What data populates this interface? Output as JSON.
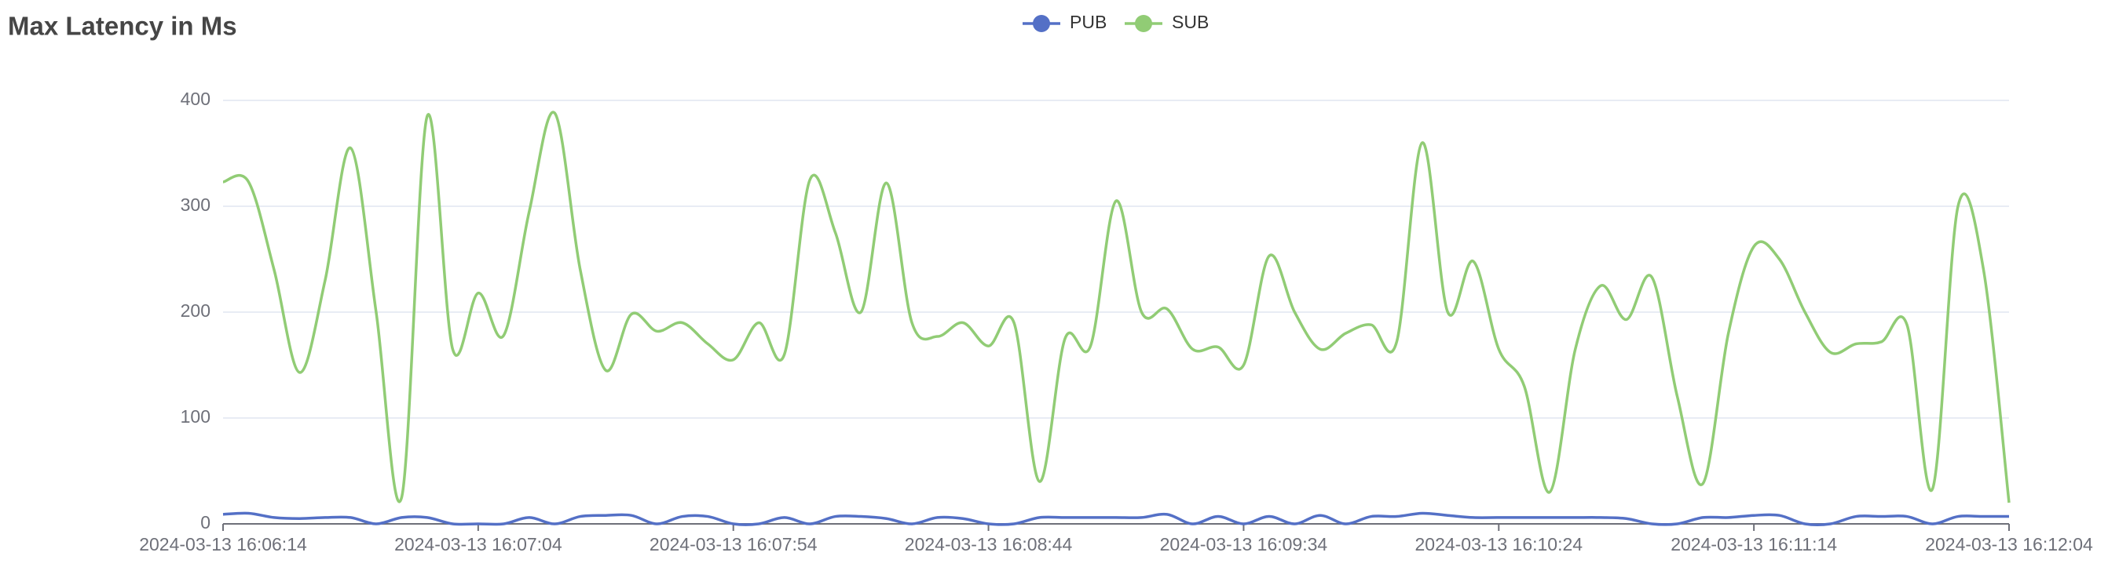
{
  "chart_data": {
    "type": "line",
    "title": "Max Latency in Ms",
    "x": [
      "2024-03-13 16:06:14",
      "2024-03-13 16:06:19",
      "2024-03-13 16:06:24",
      "2024-03-13 16:06:29",
      "2024-03-13 16:06:34",
      "2024-03-13 16:06:39",
      "2024-03-13 16:06:44",
      "2024-03-13 16:06:49",
      "2024-03-13 16:06:54",
      "2024-03-13 16:06:59",
      "2024-03-13 16:07:04",
      "2024-03-13 16:07:09",
      "2024-03-13 16:07:14",
      "2024-03-13 16:07:19",
      "2024-03-13 16:07:24",
      "2024-03-13 16:07:29",
      "2024-03-13 16:07:34",
      "2024-03-13 16:07:39",
      "2024-03-13 16:07:44",
      "2024-03-13 16:07:49",
      "2024-03-13 16:07:54",
      "2024-03-13 16:07:59",
      "2024-03-13 16:08:04",
      "2024-03-13 16:08:09",
      "2024-03-13 16:08:14",
      "2024-03-13 16:08:19",
      "2024-03-13 16:08:24",
      "2024-03-13 16:08:29",
      "2024-03-13 16:08:34",
      "2024-03-13 16:08:39",
      "2024-03-13 16:08:44",
      "2024-03-13 16:08:49",
      "2024-03-13 16:08:54",
      "2024-03-13 16:08:59",
      "2024-03-13 16:09:04",
      "2024-03-13 16:09:09",
      "2024-03-13 16:09:14",
      "2024-03-13 16:09:19",
      "2024-03-13 16:09:24",
      "2024-03-13 16:09:29",
      "2024-03-13 16:09:34",
      "2024-03-13 16:09:39",
      "2024-03-13 16:09:44",
      "2024-03-13 16:09:49",
      "2024-03-13 16:09:54",
      "2024-03-13 16:09:59",
      "2024-03-13 16:10:04",
      "2024-03-13 16:10:09",
      "2024-03-13 16:10:14",
      "2024-03-13 16:10:19",
      "2024-03-13 16:10:24",
      "2024-03-13 16:10:29",
      "2024-03-13 16:10:34",
      "2024-03-13 16:10:39",
      "2024-03-13 16:10:44",
      "2024-03-13 16:10:49",
      "2024-03-13 16:10:54",
      "2024-03-13 16:10:59",
      "2024-03-13 16:11:04",
      "2024-03-13 16:11:09",
      "2024-03-13 16:11:14",
      "2024-03-13 16:11:19",
      "2024-03-13 16:11:24",
      "2024-03-13 16:11:29",
      "2024-03-13 16:11:34",
      "2024-03-13 16:11:39",
      "2024-03-13 16:11:44",
      "2024-03-13 16:11:49",
      "2024-03-13 16:11:54",
      "2024-03-13 16:11:59",
      "2024-03-13 16:12:04"
    ],
    "series": [
      {
        "name": "PUB",
        "color": "#5470c6",
        "values": [
          9,
          10,
          6,
          5,
          6,
          6,
          0,
          6,
          6,
          0,
          0,
          0,
          6,
          0,
          7,
          8,
          8,
          0,
          7,
          7,
          0,
          0,
          6,
          0,
          7,
          7,
          5,
          0,
          6,
          5,
          0,
          0,
          6,
          6,
          6,
          6,
          6,
          9,
          0,
          7,
          0,
          7,
          0,
          8,
          0,
          7,
          7,
          10,
          8,
          6,
          6,
          6,
          6,
          6,
          6,
          5,
          0,
          0,
          6,
          6,
          8,
          8,
          0,
          0,
          7,
          7,
          7,
          0,
          7,
          7,
          7
        ]
      },
      {
        "name": "SUB",
        "color": "#91cc75",
        "values": [
          323,
          323,
          240,
          143,
          230,
          355,
          200,
          25,
          385,
          165,
          218,
          178,
          295,
          388,
          240,
          145,
          198,
          182,
          190,
          170,
          155,
          190,
          160,
          325,
          275,
          200,
          322,
          190,
          177,
          190,
          168,
          190,
          40,
          175,
          168,
          305,
          200,
          203,
          165,
          167,
          150,
          253,
          200,
          165,
          180,
          188,
          172,
          360,
          200,
          248,
          165,
          130,
          30,
          165,
          225,
          193,
          233,
          120,
          38,
          180,
          262,
          250,
          200,
          162,
          170,
          172,
          188,
          33,
          300,
          240,
          20
        ]
      }
    ],
    "xlim": [
      "2024-03-13 16:06:14",
      "2024-03-13 16:12:04"
    ],
    "xticks": [
      "2024-03-13 16:06:14",
      "2024-03-13 16:07:04",
      "2024-03-13 16:07:54",
      "2024-03-13 16:08:44",
      "2024-03-13 16:09:34",
      "2024-03-13 16:10:24",
      "2024-03-13 16:11:14",
      "2024-03-13 16:12:04"
    ],
    "ylim": [
      0,
      400
    ],
    "yticks": [
      0,
      100,
      200,
      300,
      400
    ],
    "grid": true,
    "smooth": true
  }
}
